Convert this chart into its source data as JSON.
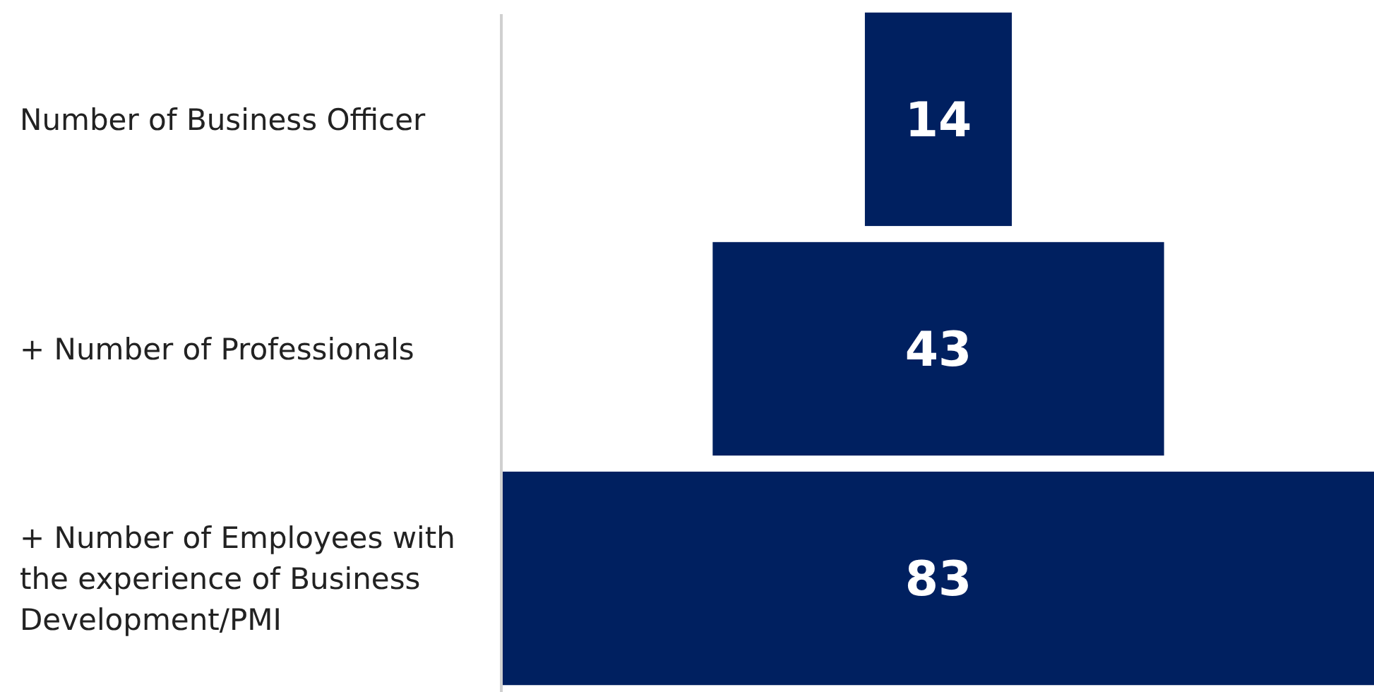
{
  "chart_data": {
    "type": "other",
    "categories": [
      "Number of Business Officer",
      "+ Number of Professionals",
      "+ Number of Employees with the experience of Business Development/PMI"
    ],
    "values": [
      14,
      43,
      83
    ],
    "color": "#002060",
    "data_labels": true
  }
}
